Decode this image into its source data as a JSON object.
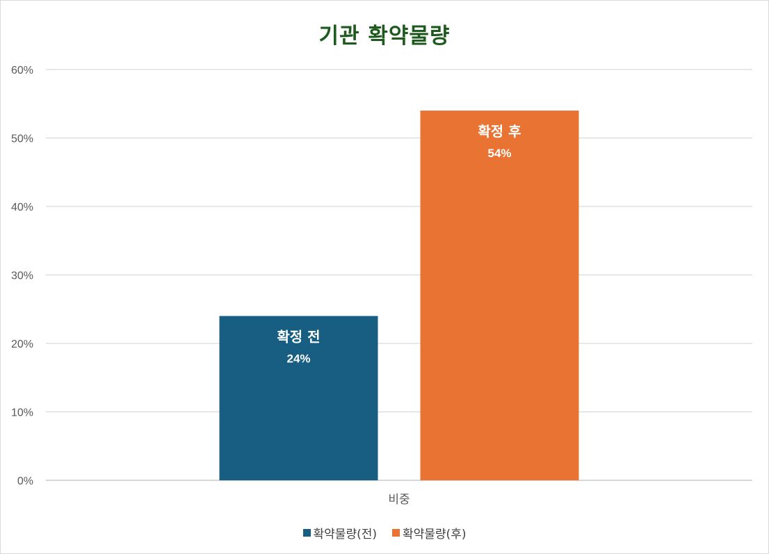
{
  "chart_data": {
    "type": "bar",
    "title": "기관 확약물량",
    "categories": [
      "비중"
    ],
    "series": [
      {
        "name": "확약물량(전)",
        "values": [
          24
        ],
        "label": "확정 전",
        "value_label": "24%",
        "color": "#175e82"
      },
      {
        "name": "확약물량(후)",
        "values": [
          54
        ],
        "label": "확정 후",
        "value_label": "54%",
        "color": "#e97332"
      }
    ],
    "ylim": [
      0,
      60
    ],
    "yticks": [
      0,
      10,
      20,
      30,
      40,
      50,
      60
    ],
    "ytick_labels": [
      "0%",
      "10%",
      "20%",
      "30%",
      "40%",
      "50%",
      "60%"
    ],
    "grid": true,
    "legend_position": "bottom"
  }
}
